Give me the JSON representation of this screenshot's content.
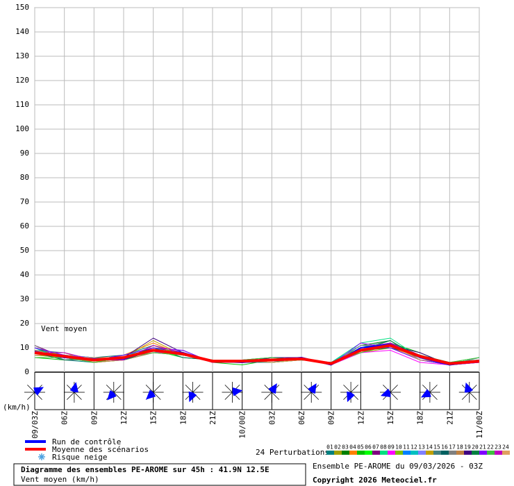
{
  "chart_data": {
    "type": "line",
    "categories": [
      "09/03Z",
      "06Z",
      "09Z",
      "12Z",
      "15Z",
      "18Z",
      "21Z",
      "10/00Z",
      "03Z",
      "06Z",
      "09Z",
      "12Z",
      "15Z",
      "18Z",
      "21Z",
      "11/00Z"
    ],
    "ylim": [
      0,
      150
    ],
    "yticks": [
      0,
      10,
      20,
      30,
      40,
      50,
      60,
      70,
      80,
      90,
      100,
      110,
      120,
      130,
      140,
      150
    ],
    "grid": true,
    "y_unit_label": "(km/h)",
    "annotation": "Vent moyen",
    "series": [
      {
        "name": "01",
        "color": "#008080",
        "values": [
          9,
          5,
          4,
          7,
          11,
          8,
          4,
          5,
          4,
          6,
          3,
          10,
          12,
          6,
          3,
          5
        ]
      },
      {
        "name": "02",
        "color": "#a0a000",
        "values": [
          7,
          7,
          6,
          5,
          8,
          7,
          5,
          4,
          6,
          5,
          4,
          8,
          10,
          7,
          4,
          4
        ]
      },
      {
        "name": "03",
        "color": "#008000",
        "values": [
          10,
          6,
          5,
          6,
          10,
          8,
          4,
          4,
          5,
          6,
          3,
          11,
          13,
          5,
          3,
          5
        ]
      },
      {
        "name": "04",
        "color": "#ff8000",
        "values": [
          8,
          8,
          4,
          7,
          12,
          7,
          5,
          5,
          4,
          5,
          4,
          9,
          10,
          6,
          4,
          4
        ]
      },
      {
        "name": "05",
        "color": "#00c000",
        "values": [
          6,
          5,
          5,
          5,
          8,
          9,
          4,
          3,
          5,
          6,
          3,
          8,
          12,
          8,
          3,
          5
        ]
      },
      {
        "name": "06",
        "color": "#00ff00",
        "values": [
          9,
          7,
          6,
          6,
          9,
          6,
          5,
          5,
          4,
          5,
          4,
          10,
          11,
          5,
          4,
          6
        ]
      },
      {
        "name": "07",
        "color": "#800080",
        "values": [
          11,
          6,
          4,
          5,
          10,
          8,
          4,
          4,
          6,
          6,
          3,
          9,
          12,
          7,
          3,
          4
        ]
      },
      {
        "name": "08",
        "color": "#00e080",
        "values": [
          7,
          6,
          5,
          7,
          9,
          7,
          5,
          5,
          5,
          5,
          4,
          12,
          14,
          6,
          4,
          5
        ]
      },
      {
        "name": "09",
        "color": "#ff00ff",
        "values": [
          8,
          5,
          6,
          6,
          8,
          8,
          4,
          4,
          5,
          6,
          3,
          8,
          9,
          4,
          3,
          4
        ]
      },
      {
        "name": "10",
        "color": "#80c000",
        "values": [
          9,
          7,
          4,
          5,
          11,
          7,
          5,
          5,
          6,
          5,
          4,
          10,
          11,
          7,
          4,
          5
        ]
      },
      {
        "name": "11",
        "color": "#0080ff",
        "values": [
          6,
          6,
          5,
          6,
          9,
          8,
          4,
          4,
          4,
          6,
          3,
          9,
          12,
          6,
          3,
          6
        ]
      },
      {
        "name": "12",
        "color": "#00c0c0",
        "values": [
          10,
          5,
          5,
          7,
          10,
          7,
          5,
          5,
          5,
          5,
          4,
          11,
          10,
          5,
          4,
          4
        ]
      },
      {
        "name": "13",
        "color": "#8080ff",
        "values": [
          8,
          7,
          6,
          5,
          8,
          9,
          4,
          4,
          6,
          6,
          3,
          9,
          11,
          7,
          3,
          5
        ]
      },
      {
        "name": "14",
        "color": "#c0a000",
        "values": [
          7,
          6,
          4,
          6,
          13,
          7,
          5,
          5,
          5,
          5,
          4,
          8,
          12,
          6,
          4,
          4
        ]
      },
      {
        "name": "15",
        "color": "#408080",
        "values": [
          9,
          8,
          5,
          5,
          9,
          8,
          4,
          4,
          4,
          6,
          3,
          10,
          13,
          5,
          3,
          5
        ]
      },
      {
        "name": "16",
        "color": "#006060",
        "values": [
          8,
          6,
          6,
          7,
          10,
          6,
          5,
          5,
          6,
          5,
          4,
          9,
          10,
          7,
          4,
          4
        ]
      },
      {
        "name": "17",
        "color": "#808080",
        "values": [
          11,
          5,
          5,
          6,
          9,
          8,
          4,
          4,
          5,
          6,
          3,
          11,
          11,
          6,
          3,
          6
        ]
      },
      {
        "name": "18",
        "color": "#c08040",
        "values": [
          7,
          7,
          4,
          5,
          8,
          7,
          5,
          5,
          5,
          5,
          4,
          8,
          12,
          5,
          4,
          5
        ]
      },
      {
        "name": "19",
        "color": "#400080",
        "values": [
          9,
          6,
          5,
          6,
          14,
          8,
          4,
          4,
          6,
          6,
          3,
          10,
          11,
          8,
          3,
          4
        ]
      },
      {
        "name": "20",
        "color": "#008040",
        "values": [
          8,
          5,
          6,
          5,
          9,
          7,
          5,
          5,
          4,
          5,
          4,
          9,
          13,
          6,
          4,
          5
        ]
      },
      {
        "name": "21",
        "color": "#8000ff",
        "values": [
          10,
          7,
          5,
          7,
          10,
          9,
          4,
          4,
          5,
          6,
          3,
          12,
          10,
          5,
          3,
          4
        ]
      },
      {
        "name": "22",
        "color": "#40c040",
        "values": [
          6,
          6,
          4,
          6,
          8,
          7,
          5,
          5,
          6,
          5,
          4,
          8,
          11,
          7,
          4,
          6
        ]
      },
      {
        "name": "23",
        "color": "#c000c0",
        "values": [
          8,
          8,
          5,
          5,
          11,
          8,
          4,
          4,
          5,
          6,
          3,
          10,
          12,
          6,
          3,
          5
        ]
      },
      {
        "name": "24",
        "color": "#e0a060",
        "values": [
          9,
          6,
          6,
          6,
          9,
          7,
          5,
          5,
          4,
          5,
          4,
          9,
          11,
          5,
          4,
          4
        ]
      },
      {
        "name": "Run de contrôle",
        "color": "#0000ff",
        "role": "control",
        "values": [
          8.5,
          6,
          5.5,
          5.5,
          9,
          8,
          4.5,
          4,
          5,
          6,
          3,
          10,
          11.5,
          6,
          3,
          4.5
        ]
      },
      {
        "name": "Moyenne des scénarios",
        "color": "#ff0000",
        "role": "mean",
        "values": [
          8,
          6.5,
          5,
          6,
          9,
          7.5,
          4.5,
          4.5,
          5,
          5.5,
          3.5,
          9,
          11,
          6.5,
          3.5,
          4.5
        ]
      }
    ],
    "wind_roses": {
      "hours": [
        0,
        4,
        8,
        12,
        16,
        20,
        24,
        28,
        32,
        36,
        40,
        44
      ],
      "direction": [
        60,
        10,
        220,
        225,
        200,
        80,
        30,
        30,
        200,
        250,
        240,
        340
      ]
    },
    "legend_snow": "Risque neige",
    "perturbations_label": "24 Perturbations",
    "run_info": "Ensemble PE-AROME du 09/03/2026 - 03Z",
    "title": "Diagramme des ensembles PE-AROME sur 45h : 41.9N 12.5E",
    "subtitle": "Vent moyen (km/h)",
    "copyright": "Copyright 2026 Meteociel.fr"
  }
}
